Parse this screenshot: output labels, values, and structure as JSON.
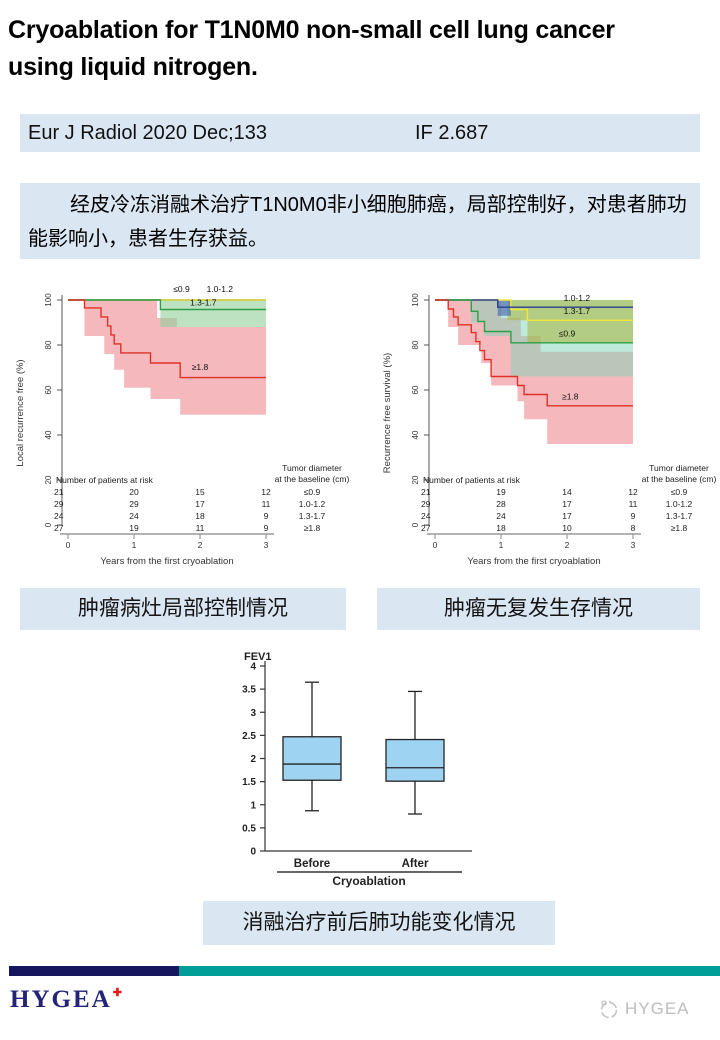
{
  "title": "Cryoablation for T1N0M0 non-small cell lung cancer using liquid nitrogen.",
  "journal": {
    "citation": "Eur J Radiol 2020 Dec;133",
    "impact_factor": "IF 2.687"
  },
  "summary": "经皮冷冻消融术治疗T1N0M0非小细胞肺癌，局部控制好，对患者肺功能影响小，患者生存获益。",
  "captions": {
    "left": "肿瘤病灶局部控制情况",
    "right": "肿瘤无复发生存情况",
    "bottom": "消融治疗前后肺功能变化情况"
  },
  "footer": {
    "logo": "HYGEA",
    "watermark": "HYGEA"
  },
  "colors": {
    "panel_bg": "#dbe6f3",
    "footer_navy": "#16165f",
    "footer_teal": "#009e97",
    "logo_navy": "#232377",
    "logo_red": "#e11b1b",
    "watermark_gray": "#bdbdbd",
    "km_red": "#e03127",
    "km_green": "#2e9e47",
    "km_yellow": "#f2e637",
    "km_navy": "#2b3f8f"
  },
  "chart_data": [
    {
      "type": "line",
      "subtype": "kaplan_meier_step",
      "title": "",
      "ylabel": "Local recurrence free (%)",
      "xlabel": "Years from the first cryoablation",
      "ylim": [
        0,
        100
      ],
      "xlim": [
        0,
        3
      ],
      "yticks": [
        0,
        20,
        40,
        60,
        80,
        100
      ],
      "xticks": [
        0,
        1,
        2,
        3
      ],
      "legend": {
        "title_lines": [
          "Tumor diameter",
          "at the baseline (cm)"
        ],
        "entries": [
          "≤0.9",
          "1.0-1.2",
          "1.3-1.7",
          "≥1.8"
        ]
      },
      "risk_table": {
        "header": "Number of patients at risk",
        "rows": [
          {
            "group": "≤0.9",
            "counts": [
              21,
              20,
              15,
              12
            ]
          },
          {
            "group": "1.0-1.2",
            "counts": [
              29,
              29,
              17,
              11
            ]
          },
          {
            "group": "1.3-1.7",
            "counts": [
              24,
              24,
              18,
              9
            ]
          },
          {
            "group": "≥1.8",
            "counts": [
              27,
              19,
              11,
              9
            ]
          }
        ]
      },
      "ci_bands": [
        {
          "group": "≥1.8",
          "color": "#f2a7ac",
          "opacity": 0.8,
          "polygon": [
            [
              0.25,
              100
            ],
            [
              1.35,
              100
            ],
            [
              1.35,
              92
            ],
            [
              1.65,
              92
            ],
            [
              1.65,
              88
            ],
            [
              3,
              88
            ],
            [
              3,
              49
            ],
            [
              1.7,
              49
            ],
            [
              1.7,
              56
            ],
            [
              1.25,
              56
            ],
            [
              1.25,
              61
            ],
            [
              0.85,
              61
            ],
            [
              0.85,
              69
            ],
            [
              0.7,
              69
            ],
            [
              0.7,
              76
            ],
            [
              0.55,
              76
            ],
            [
              0.55,
              84
            ],
            [
              0.25,
              84
            ]
          ]
        },
        {
          "group": "1.3-1.7",
          "color": "#8fce9a",
          "opacity": 0.6,
          "polygon": [
            [
              1.4,
              100
            ],
            [
              3,
              100
            ],
            [
              3,
              88
            ],
            [
              1.4,
              88
            ]
          ]
        }
      ],
      "series": [
        {
          "name": "1.0-1.2",
          "color": "#2b3f8f",
          "steps": [
            [
              0,
              100
            ],
            [
              3,
              100
            ]
          ],
          "label": null
        },
        {
          "name": "≤0.9",
          "color": "#f2e637",
          "steps": [
            [
              0,
              100
            ],
            [
              3,
              100
            ]
          ],
          "label": {
            "text": "≤0.9",
            "x": 1.72,
            "y": 103.5
          }
        },
        {
          "name": "1.0-1.2-label",
          "color": "none",
          "steps": [],
          "label": {
            "text": "1.0-1.2",
            "x": 2.3,
            "y": 103.5
          }
        },
        {
          "name": "1.3-1.7",
          "color": "#2e9e47",
          "steps": [
            [
              0,
              100
            ],
            [
              1.4,
              100
            ],
            [
              1.4,
              95.8
            ],
            [
              3,
              95.8
            ]
          ],
          "label": {
            "text": "1.3-1.7",
            "x": 2.05,
            "y": 97.6
          }
        },
        {
          "name": "≥1.8",
          "color": "#e03127",
          "steps": [
            [
              0,
              100
            ],
            [
              0.25,
              100
            ],
            [
              0.25,
              96.5
            ],
            [
              0.5,
              96.5
            ],
            [
              0.5,
              92.5
            ],
            [
              0.6,
              92.5
            ],
            [
              0.6,
              88.5
            ],
            [
              0.65,
              88.5
            ],
            [
              0.65,
              84.5
            ],
            [
              0.7,
              84.5
            ],
            [
              0.7,
              80.5
            ],
            [
              0.8,
              80.5
            ],
            [
              0.8,
              76.5
            ],
            [
              1.25,
              76.5
            ],
            [
              1.25,
              72
            ],
            [
              1.7,
              72
            ],
            [
              1.7,
              65.5
            ],
            [
              3,
              65.5
            ]
          ],
          "label": {
            "text": "≥1.8",
            "x": 2.0,
            "y": 68.8
          }
        }
      ]
    },
    {
      "type": "line",
      "subtype": "kaplan_meier_step",
      "title": "",
      "ylabel": "Recurrence free survival (%)",
      "xlabel": "Years from the first cryoablation",
      "ylim": [
        0,
        100
      ],
      "xlim": [
        0,
        3
      ],
      "yticks": [
        0,
        20,
        40,
        60,
        80,
        100
      ],
      "xticks": [
        0,
        1,
        2,
        3
      ],
      "legend": {
        "title_lines": [
          "Tumor diameter",
          "at the baseline (cm)"
        ],
        "entries": [
          "≤0.9",
          "1.0-1.2",
          "1.3-1.7",
          "≥1.8"
        ]
      },
      "risk_table": {
        "header": "Number of patients at risk",
        "rows": [
          {
            "group": "≤0.9",
            "counts": [
              21,
              19,
              14,
              12
            ]
          },
          {
            "group": "1.0-1.2",
            "counts": [
              29,
              28,
              17,
              11
            ]
          },
          {
            "group": "1.3-1.7",
            "counts": [
              24,
              24,
              17,
              9
            ]
          },
          {
            "group": "≥1.8",
            "counts": [
              27,
              18,
              10,
              8
            ]
          }
        ]
      },
      "ci_bands": [
        {
          "group": "≥1.8",
          "color": "#f2a7ac",
          "opacity": 0.8,
          "polygon": [
            [
              0.2,
              100
            ],
            [
              1.0,
              100
            ],
            [
              1.0,
              92
            ],
            [
              1.3,
              92
            ],
            [
              1.3,
              84
            ],
            [
              1.6,
              84
            ],
            [
              1.6,
              77
            ],
            [
              3,
              77
            ],
            [
              3,
              36
            ],
            [
              1.7,
              36
            ],
            [
              1.7,
              47
            ],
            [
              1.35,
              47
            ],
            [
              1.35,
              55
            ],
            [
              1.25,
              55
            ],
            [
              1.25,
              62
            ],
            [
              0.85,
              62
            ],
            [
              0.85,
              72
            ],
            [
              0.7,
              72
            ],
            [
              0.7,
              80
            ],
            [
              0.35,
              80
            ],
            [
              0.35,
              88
            ],
            [
              0.2,
              88
            ]
          ]
        },
        {
          "group": "≤0.9",
          "color": "#7fd4b6",
          "opacity": 0.5,
          "polygon": [
            [
              0.55,
              100
            ],
            [
              3,
              100
            ],
            [
              3,
              66
            ],
            [
              1.15,
              66
            ],
            [
              1.15,
              84
            ],
            [
              0.75,
              84
            ],
            [
              0.75,
              90
            ],
            [
              0.55,
              90
            ]
          ]
        },
        {
          "group": "1.3-1.7",
          "color": "#aab43c",
          "opacity": 0.55,
          "polygon": [
            [
              1.1,
              100
            ],
            [
              3,
              100
            ],
            [
              3,
              81
            ],
            [
              1.4,
              81
            ],
            [
              1.4,
              91
            ],
            [
              1.1,
              91
            ]
          ]
        },
        {
          "group": "1.0-1.2",
          "color": "#3f5fae",
          "opacity": 0.6,
          "polygon": [
            [
              0.95,
              100
            ],
            [
              1.15,
              100
            ],
            [
              1.15,
              93
            ],
            [
              0.95,
              93
            ]
          ]
        }
      ],
      "series": [
        {
          "name": "1.3-1.7",
          "color": "#f2e637",
          "steps": [
            [
              0,
              100
            ],
            [
              1.15,
              100
            ],
            [
              1.15,
              95.8
            ],
            [
              1.4,
              95.8
            ],
            [
              1.4,
              91
            ],
            [
              3,
              91
            ]
          ],
          "label": {
            "text": "1.3-1.7",
            "x": 2.15,
            "y": 93.8
          }
        },
        {
          "name": "1.0-1.2",
          "color": "#2b3f8f",
          "steps": [
            [
              0,
              100
            ],
            [
              0.95,
              100
            ],
            [
              0.95,
              96.8
            ],
            [
              3,
              96.8
            ]
          ],
          "label": {
            "text": "1.0-1.2",
            "x": 2.15,
            "y": 99.6
          }
        },
        {
          "name": "≤0.9",
          "color": "#2e9e47",
          "steps": [
            [
              0,
              100
            ],
            [
              0.55,
              100
            ],
            [
              0.55,
              95
            ],
            [
              0.65,
              95
            ],
            [
              0.65,
              90.5
            ],
            [
              0.75,
              90.5
            ],
            [
              0.75,
              86
            ],
            [
              1.15,
              86
            ],
            [
              1.15,
              81
            ],
            [
              3,
              81
            ]
          ],
          "label": {
            "text": "≤0.9",
            "x": 2.0,
            "y": 83.8
          }
        },
        {
          "name": "≥1.8",
          "color": "#e03127",
          "steps": [
            [
              0,
              100
            ],
            [
              0.2,
              100
            ],
            [
              0.2,
              96
            ],
            [
              0.28,
              96
            ],
            [
              0.28,
              92.5
            ],
            [
              0.35,
              92.5
            ],
            [
              0.35,
              89
            ],
            [
              0.55,
              89
            ],
            [
              0.55,
              85.5
            ],
            [
              0.62,
              85.5
            ],
            [
              0.62,
              81.5
            ],
            [
              0.68,
              81.5
            ],
            [
              0.68,
              77.5
            ],
            [
              0.75,
              77.5
            ],
            [
              0.75,
              73.5
            ],
            [
              0.85,
              73.5
            ],
            [
              0.85,
              66
            ],
            [
              1.25,
              66
            ],
            [
              1.25,
              62
            ],
            [
              1.35,
              62
            ],
            [
              1.35,
              58
            ],
            [
              1.7,
              58
            ],
            [
              1.7,
              53
            ],
            [
              3,
              53
            ]
          ],
          "label": {
            "text": "≥1.8",
            "x": 2.05,
            "y": 55.8
          }
        }
      ]
    },
    {
      "type": "box",
      "title": "FEV1",
      "categories": [
        "Before",
        "After"
      ],
      "group_label": "Cryoablation",
      "ylim": [
        0,
        4
      ],
      "yticks": [
        0,
        0.5,
        1,
        1.5,
        2,
        2.5,
        3,
        3.5,
        4
      ],
      "box_fill": "#9fd3f2",
      "series": [
        {
          "name": "Before",
          "min": 0.87,
          "q1": 1.53,
          "median": 1.88,
          "q3": 2.47,
          "max": 3.65
        },
        {
          "name": "After",
          "min": 0.8,
          "q1": 1.51,
          "median": 1.8,
          "q3": 2.41,
          "max": 3.45
        }
      ]
    }
  ]
}
